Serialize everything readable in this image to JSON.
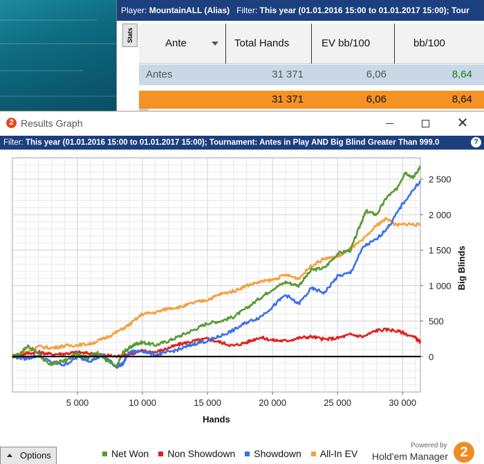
{
  "stats_window": {
    "filter_bar": {
      "player_label": "Player:",
      "player_value": "MountainALL (Alias)",
      "filter_label": "Filter:",
      "filter_value": "This year (01.01.2016 15:00 to 01.01.2017 15:00);",
      "tail": "Tour"
    },
    "side_tab": "Stats",
    "columns": [
      "Ante",
      "Total Hands",
      "EV bb/100",
      "bb/100"
    ],
    "rows": [
      {
        "ante": "Antes",
        "total_hands": "31 371",
        "ev_bb100": "6,06",
        "bb100": "8,64"
      },
      {
        "ante": "",
        "total_hands": "31 371",
        "ev_bb100": "6,06",
        "bb100": "8,64"
      }
    ]
  },
  "graph_window": {
    "title": "Results Graph",
    "app_logo": "2",
    "controls": {
      "minimize": "minimize-icon",
      "maximize": "maximize-icon",
      "close": "close-icon"
    },
    "filter_label": "Filter:",
    "filter_value": "This year (01.01.2016 15:00 to 01.01.2017 15:00); Tournament: Antes in Play  AND Big Blind Greater Than 999.0",
    "help_icon": "?",
    "options_label": "Options",
    "brand": {
      "powered": "Powered by",
      "name": "Hold'em Manager",
      "logo": "2"
    }
  },
  "chart_data": {
    "type": "line",
    "xlabel": "Hands",
    "ylabel": "Big Blinds",
    "xlim": [
      0,
      31371
    ],
    "ylim": [
      -500,
      2800
    ],
    "xticks": [
      5000,
      10000,
      15000,
      20000,
      25000,
      30000
    ],
    "xtick_labels": [
      "5 000",
      "10 000",
      "15 000",
      "20 000",
      "25 000",
      "30 000"
    ],
    "yticks": [
      0,
      500,
      1000,
      1500,
      2000,
      2500
    ],
    "ytick_labels": [
      "0",
      "500",
      "1 000",
      "1 500",
      "2 000",
      "2 500"
    ],
    "grid": true,
    "zero_line": true,
    "legend_position": "bottom",
    "series": [
      {
        "name": "Net Won",
        "color": "#5a9a32",
        "x": [
          0,
          500,
          1200,
          2000,
          2800,
          3500,
          4200,
          5000,
          5800,
          6500,
          7200,
          8000,
          8500,
          9000,
          9500,
          10000,
          11000,
          12000,
          13000,
          14000,
          15000,
          16000,
          17000,
          18000,
          19000,
          20000,
          21000,
          22000,
          23000,
          24000,
          25000,
          26000,
          26800,
          27200,
          28000,
          28800,
          29500,
          30200,
          30800,
          31371
        ],
        "y": [
          0,
          30,
          150,
          40,
          -120,
          -80,
          -50,
          50,
          -20,
          60,
          -50,
          -150,
          60,
          120,
          180,
          200,
          160,
          220,
          300,
          380,
          470,
          500,
          560,
          680,
          820,
          950,
          1050,
          1000,
          1220,
          1250,
          1450,
          1500,
          1880,
          2050,
          2000,
          2250,
          2350,
          2600,
          2520,
          2680
        ]
      },
      {
        "name": "Non Showdown",
        "color": "#e02020",
        "x": [
          0,
          1000,
          2000,
          3000,
          4000,
          5000,
          6000,
          7000,
          8000,
          9000,
          10000,
          11000,
          12000,
          13000,
          14000,
          15000,
          16000,
          17000,
          18000,
          19000,
          20000,
          21000,
          22000,
          23000,
          24000,
          25000,
          26000,
          27000,
          28000,
          29000,
          30000,
          31000,
          31371
        ],
        "y": [
          0,
          40,
          60,
          30,
          40,
          60,
          40,
          20,
          0,
          30,
          80,
          60,
          120,
          180,
          220,
          250,
          200,
          150,
          200,
          270,
          230,
          220,
          260,
          280,
          240,
          260,
          310,
          280,
          370,
          380,
          340,
          260,
          200
        ]
      },
      {
        "name": "Showdown",
        "color": "#3a6fe8",
        "x": [
          0,
          1000,
          2000,
          3000,
          4000,
          5000,
          6000,
          7000,
          8000,
          8500,
          9000,
          10000,
          11000,
          12000,
          13000,
          14000,
          15000,
          16000,
          17000,
          18000,
          19000,
          20000,
          21000,
          22000,
          23000,
          24000,
          25000,
          26000,
          27000,
          28000,
          29000,
          30000,
          31371
        ],
        "y": [
          0,
          -30,
          10,
          -80,
          -120,
          -10,
          -60,
          20,
          -150,
          -100,
          60,
          80,
          20,
          60,
          110,
          180,
          220,
          290,
          370,
          480,
          550,
          700,
          870,
          740,
          960,
          900,
          1130,
          1180,
          1550,
          1650,
          1850,
          2150,
          2480
        ]
      },
      {
        "name": "All-In EV",
        "color": "#f5a040",
        "x": [
          0,
          1000,
          2000,
          3000,
          4000,
          5000,
          6000,
          7000,
          8000,
          9000,
          10000,
          11000,
          12000,
          13000,
          14000,
          15000,
          16000,
          17000,
          18000,
          19000,
          20000,
          21000,
          22000,
          23000,
          24000,
          25000,
          26000,
          27000,
          28000,
          28800,
          29500,
          30500,
          31371
        ],
        "y": [
          0,
          60,
          140,
          120,
          150,
          160,
          180,
          250,
          340,
          450,
          600,
          620,
          680,
          700,
          760,
          800,
          880,
          920,
          1000,
          1050,
          1080,
          1150,
          1100,
          1280,
          1380,
          1400,
          1520,
          1650,
          1850,
          1950,
          1850,
          1870,
          1850
        ]
      }
    ]
  }
}
